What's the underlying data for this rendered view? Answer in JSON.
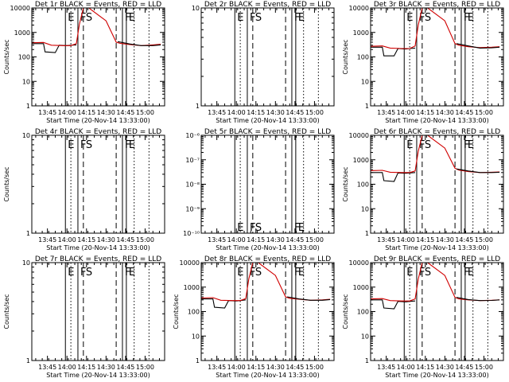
{
  "figure": {
    "background": "#ffffff",
    "axis_color": "#000000"
  },
  "time_axis": {
    "xlabel": "Start Time (20-Nov-14 13:33:00)",
    "ticks": [
      {
        "value": 13.75,
        "label": "13:45"
      },
      {
        "value": 14.0,
        "label": "14:00"
      },
      {
        "value": 14.25,
        "label": "14:15"
      },
      {
        "value": 14.5,
        "label": "14:30"
      },
      {
        "value": 14.75,
        "label": "14:45"
      },
      {
        "value": 15.0,
        "label": "15:00"
      }
    ],
    "xlim": [
      13.55,
      15.25
    ]
  },
  "markers": [
    {
      "x": 13.98,
      "style": "solid",
      "letter": "E"
    },
    {
      "x": 14.05,
      "style": "dotted",
      "letter": ""
    },
    {
      "x": 14.14,
      "style": "solid",
      "letter": "F"
    },
    {
      "x": 14.21,
      "style": "dashed",
      "letter": "S"
    },
    {
      "x": 14.63,
      "style": "dashed",
      "letter": ""
    },
    {
      "x": 14.71,
      "style": "solid",
      "letter": "F"
    },
    {
      "x": 14.76,
      "style": "solid",
      "letter": "E"
    },
    {
      "x": 14.86,
      "style": "dotted",
      "letter": ""
    },
    {
      "x": 15.05,
      "style": "dotted",
      "letter": ""
    }
  ],
  "colors": {
    "events": "#000000",
    "lld": "#d00000"
  },
  "chart_data": [
    {
      "type": "line",
      "title": "Det 1r BLACK = Events, RED = LLD",
      "ylabel": "Counts/sec",
      "xlabel": "Start Time (20-Nov-14 13:33:00)",
      "yscale": "log",
      "ylim": [
        1,
        10000
      ],
      "yticks": [
        {
          "value": 1,
          "label": "1"
        },
        {
          "value": 10,
          "label": "10"
        },
        {
          "value": 100,
          "label": "100"
        },
        {
          "value": 1000,
          "label": "1000"
        },
        {
          "value": 10000,
          "label": "10000"
        }
      ],
      "has_data": true,
      "show_tick_labels": true,
      "letters": "top",
      "series": [
        {
          "color": "#000000",
          "x": [
            13.55,
            13.7,
            13.72,
            13.85,
            13.9,
            14.0,
            14.05,
            14.12
          ],
          "y": [
            350,
            350,
            160,
            150,
            300,
            290,
            300,
            310
          ]
        },
        {
          "color": "#d00000",
          "x": [
            13.55,
            13.7,
            13.8,
            13.95,
            14.05,
            14.12,
            14.16,
            14.21,
            14.28,
            14.5,
            14.63,
            14.68,
            14.8,
            14.95,
            15.1,
            15.2
          ],
          "y": [
            380,
            390,
            300,
            290,
            290,
            350,
            2200,
            10000,
            10000,
            3000,
            400,
            360,
            320,
            290,
            310,
            330
          ]
        },
        {
          "color": "#000000",
          "x": [
            14.65,
            14.8,
            14.95,
            15.1,
            15.2
          ],
          "y": [
            420,
            340,
            290,
            290,
            310
          ]
        }
      ]
    },
    {
      "type": "line",
      "title": "Det 2r BLACK = Events, RED = LLD",
      "ylabel": "",
      "xlabel": "Start Time (20-Nov-14 13:33:00)",
      "yscale": "log",
      "ylim": [
        1,
        10
      ],
      "yticks": [
        {
          "value": 1,
          "label": "1"
        },
        {
          "value": 10,
          "label": "10"
        }
      ],
      "has_data": false,
      "show_tick_labels": true,
      "letters": "top",
      "series": []
    },
    {
      "type": "line",
      "title": "Det 3r BLACK = Events, RED = LLD",
      "ylabel": "Counts/sec",
      "xlabel": "Start Time (20-Nov-14 13:33:00)",
      "yscale": "log",
      "ylim": [
        1,
        10000
      ],
      "yticks": [
        {
          "value": 1,
          "label": "1"
        },
        {
          "value": 10,
          "label": "10"
        },
        {
          "value": 100,
          "label": "100"
        },
        {
          "value": 1000,
          "label": "1000"
        },
        {
          "value": 10000,
          "label": "10000"
        }
      ],
      "has_data": true,
      "show_tick_labels": true,
      "letters": "top",
      "series": [
        {
          "color": "#000000",
          "x": [
            13.55,
            13.7,
            13.72,
            13.85,
            13.9,
            14.0,
            14.05,
            14.12
          ],
          "y": [
            250,
            250,
            110,
            110,
            220,
            210,
            220,
            230
          ]
        },
        {
          "color": "#d00000",
          "x": [
            13.55,
            13.7,
            13.8,
            13.95,
            14.05,
            14.12,
            14.16,
            14.21,
            14.28,
            14.5,
            14.63,
            14.68,
            14.8,
            14.95,
            15.1,
            15.2
          ],
          "y": [
            270,
            280,
            230,
            220,
            220,
            280,
            2000,
            10000,
            10000,
            3000,
            350,
            300,
            260,
            240,
            250,
            260
          ]
        },
        {
          "color": "#000000",
          "x": [
            14.65,
            14.8,
            14.95,
            15.1,
            15.2
          ],
          "y": [
            350,
            280,
            230,
            235,
            250
          ]
        }
      ]
    },
    {
      "type": "line",
      "title": "Det 4r BLACK = Events, RED = LLD",
      "ylabel": "Counts/sec",
      "xlabel": "Start Time (20-Nov-14 13:33:00)",
      "yscale": "log",
      "ylim": [
        1,
        10
      ],
      "yticks": [
        {
          "value": 1,
          "label": "1"
        },
        {
          "value": 10,
          "label": "10"
        }
      ],
      "has_data": false,
      "show_tick_labels": true,
      "letters": "top",
      "series": []
    },
    {
      "type": "line",
      "title": "Det 5r BLACK = Events, RED = LLD",
      "ylabel": "",
      "xlabel": "Start Time (20-Nov-14 13:33:00)",
      "yscale": "log",
      "ylim": [
        1e-10,
        1e-06
      ],
      "yticks": [
        {
          "value": 1e-10,
          "label": "10⁻¹⁰"
        },
        {
          "value": 1e-09,
          "label": "10⁻⁹"
        },
        {
          "value": 1e-08,
          "label": "10⁻⁸"
        },
        {
          "value": 1e-07,
          "label": "10⁻⁷"
        },
        {
          "value": 1e-06,
          "label": "10⁻⁶"
        }
      ],
      "has_data": false,
      "show_tick_labels": true,
      "letters": "bottom",
      "series": []
    },
    {
      "type": "line",
      "title": "Det 6r BLACK = Events, RED = LLD",
      "ylabel": "Counts/sec",
      "xlabel": "Start Time (20-Nov-14 13:33:00)",
      "yscale": "log",
      "ylim": [
        1,
        10000
      ],
      "yticks": [
        {
          "value": 1,
          "label": "1"
        },
        {
          "value": 10,
          "label": "10"
        },
        {
          "value": 100,
          "label": "100"
        },
        {
          "value": 1000,
          "label": "1000"
        },
        {
          "value": 10000,
          "label": "10000"
        }
      ],
      "has_data": true,
      "show_tick_labels": true,
      "letters": "top",
      "series": [
        {
          "color": "#000000",
          "x": [
            13.55,
            13.7,
            13.72,
            13.85,
            13.9,
            14.0,
            14.05,
            14.12
          ],
          "y": [
            300,
            300,
            140,
            130,
            290,
            280,
            290,
            300
          ]
        },
        {
          "color": "#d00000",
          "x": [
            13.55,
            13.7,
            13.8,
            13.95,
            14.05,
            14.12,
            14.16,
            14.21,
            14.28,
            14.5,
            14.63,
            14.68,
            14.8,
            14.95,
            15.1,
            15.2
          ],
          "y": [
            360,
            370,
            310,
            300,
            300,
            350,
            2200,
            10000,
            10000,
            3000,
            450,
            380,
            330,
            300,
            310,
            320
          ]
        },
        {
          "color": "#000000",
          "x": [
            14.65,
            14.8,
            14.95,
            15.1,
            15.2
          ],
          "y": [
            420,
            350,
            300,
            300,
            310
          ]
        }
      ]
    },
    {
      "type": "line",
      "title": "Det 7r BLACK = Events, RED = LLD",
      "ylabel": "Counts/sec",
      "xlabel": "Start Time (20-Nov-14 13:33:00)",
      "yscale": "log",
      "ylim": [
        1,
        10
      ],
      "yticks": [
        {
          "value": 1,
          "label": "1"
        },
        {
          "value": 10,
          "label": "10"
        }
      ],
      "has_data": false,
      "show_tick_labels": true,
      "letters": "top",
      "series": []
    },
    {
      "type": "line",
      "title": "Det 8r BLACK = Events, RED = LLD",
      "ylabel": "Counts/sec",
      "xlabel": "Start Time (20-Nov-14 13:33:00)",
      "yscale": "log",
      "ylim": [
        1,
        10000
      ],
      "yticks": [
        {
          "value": 1,
          "label": "1"
        },
        {
          "value": 10,
          "label": "10"
        },
        {
          "value": 100,
          "label": "100"
        },
        {
          "value": 1000,
          "label": "1000"
        },
        {
          "value": 10000,
          "label": "10000"
        }
      ],
      "has_data": true,
      "show_tick_labels": true,
      "letters": "top",
      "series": [
        {
          "color": "#000000",
          "x": [
            13.55,
            13.7,
            13.72,
            13.85,
            13.9,
            14.0,
            14.05,
            14.12
          ],
          "y": [
            330,
            330,
            150,
            140,
            280,
            270,
            280,
            300
          ]
        },
        {
          "color": "#d00000",
          "x": [
            13.55,
            13.7,
            13.8,
            13.95,
            14.05,
            14.12,
            14.16,
            14.21,
            14.28,
            14.5,
            14.63,
            14.68,
            14.8,
            14.95,
            15.1,
            15.2
          ],
          "y": [
            360,
            370,
            290,
            280,
            280,
            340,
            2200,
            10000,
            10000,
            3000,
            400,
            350,
            320,
            290,
            300,
            320
          ]
        },
        {
          "color": "#000000",
          "x": [
            14.65,
            14.8,
            14.95,
            15.1,
            15.2
          ],
          "y": [
            400,
            330,
            290,
            290,
            310
          ]
        }
      ]
    },
    {
      "type": "line",
      "title": "Det 9r BLACK = Events, RED = LLD",
      "ylabel": "Counts/sec",
      "xlabel": "Start Time (20-Nov-14 13:33:00)",
      "yscale": "log",
      "ylim": [
        1,
        10000
      ],
      "yticks": [
        {
          "value": 1,
          "label": "1"
        },
        {
          "value": 10,
          "label": "10"
        },
        {
          "value": 100,
          "label": "100"
        },
        {
          "value": 1000,
          "label": "1000"
        },
        {
          "value": 10000,
          "label": "10000"
        }
      ],
      "has_data": true,
      "show_tick_labels": true,
      "letters": "top",
      "series": [
        {
          "color": "#000000",
          "x": [
            13.55,
            13.7,
            13.72,
            13.85,
            13.9,
            14.0,
            14.05,
            14.12
          ],
          "y": [
            300,
            300,
            140,
            130,
            260,
            250,
            260,
            270
          ]
        },
        {
          "color": "#d00000",
          "x": [
            13.55,
            13.7,
            13.8,
            13.95,
            14.05,
            14.12,
            14.16,
            14.21,
            14.28,
            14.5,
            14.63,
            14.68,
            14.8,
            14.95,
            15.1,
            15.2
          ],
          "y": [
            330,
            340,
            280,
            270,
            270,
            330,
            2100,
            10000,
            10000,
            3000,
            380,
            330,
            300,
            280,
            290,
            300
          ]
        },
        {
          "color": "#000000",
          "x": [
            14.65,
            14.8,
            14.95,
            15.1,
            15.2
          ],
          "y": [
            380,
            310,
            280,
            285,
            300
          ]
        }
      ]
    }
  ]
}
